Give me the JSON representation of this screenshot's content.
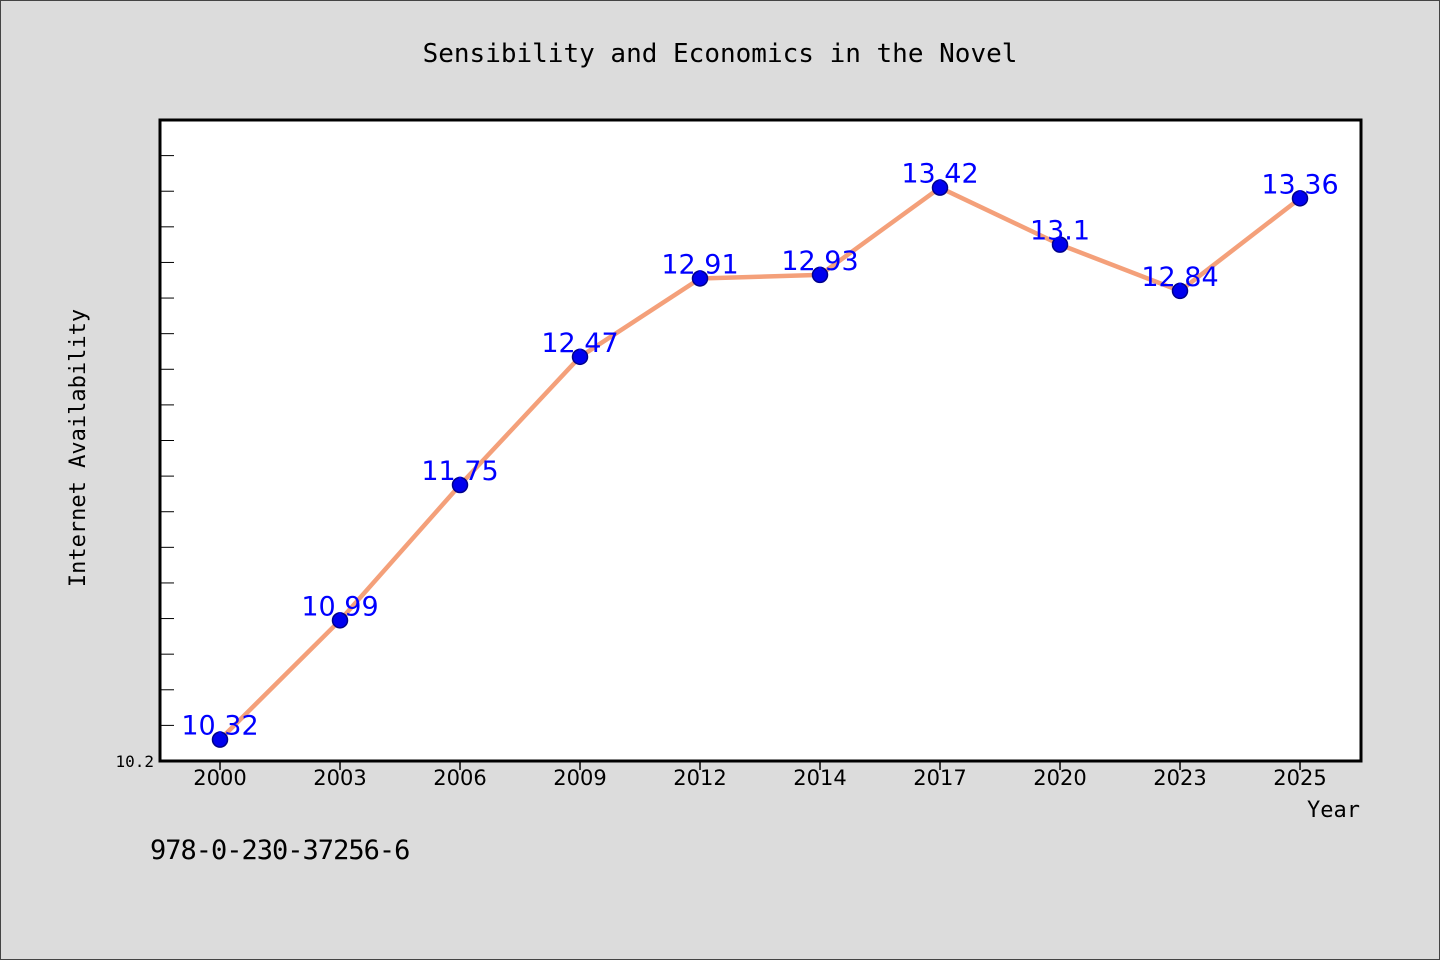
{
  "chart_data": {
    "type": "line",
    "title": "Sensibility and Economics in the Novel",
    "xlabel": "Year",
    "ylabel": "Internet Availability",
    "categories": [
      "2000",
      "2003",
      "2006",
      "2009",
      "2012",
      "2014",
      "2017",
      "2020",
      "2023",
      "2025"
    ],
    "values": [
      10.32,
      10.99,
      11.75,
      12.47,
      12.91,
      12.93,
      13.42,
      13.1,
      12.84,
      13.36
    ],
    "data_labels": [
      "10.32",
      "10.99",
      "11.75",
      "12.47",
      "12.91",
      "12.93",
      "13.42",
      "13.1",
      "12.84",
      "13.36"
    ],
    "y_tick_labels": [
      {
        "value": 10.2,
        "label": "10.2"
      }
    ],
    "ylim": [
      10.2,
      13.8
    ],
    "y_minor_step": 0.2,
    "grid": false,
    "legend": "none",
    "colors": {
      "line": "#f4a07a",
      "marker": "#0000ee",
      "marker_edge": "#00008b",
      "data_label": "#0000ff",
      "plot_bg": "#ffffff",
      "page_bg": "#dcdcdc"
    }
  },
  "footer": {
    "isbn": "978-0-230-37256-6"
  }
}
